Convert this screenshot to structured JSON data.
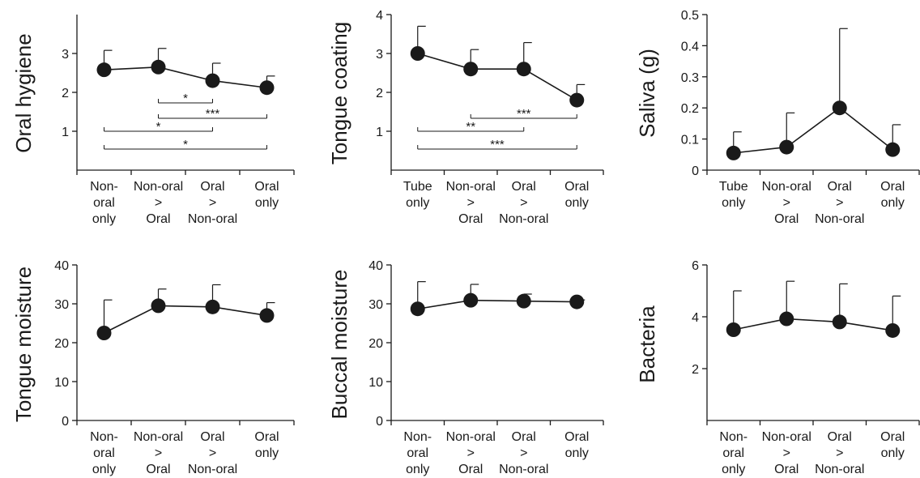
{
  "colors": {
    "ink": "#1a1a1a",
    "background": "#ffffff"
  },
  "chart_data": [
    {
      "type": "line",
      "ylabel": "Oral hygiene",
      "ylim": [
        0,
        4
      ],
      "yticks": [
        "1",
        "2",
        "3"
      ],
      "ytick_values": [
        1,
        2,
        3
      ],
      "categories": [
        [
          "Non-",
          "oral",
          "only"
        ],
        [
          "Non-oral",
          ">",
          "Oral"
        ],
        [
          "Oral",
          ">",
          "Non-oral"
        ],
        [
          "Oral",
          "only"
        ]
      ],
      "values": [
        2.58,
        2.65,
        2.3,
        2.12
      ],
      "errors": [
        0.5,
        0.48,
        0.45,
        0.3
      ],
      "significance": [
        {
          "from": 1,
          "to": 2,
          "label": "*"
        },
        {
          "from": 1,
          "to": 3,
          "label": "***"
        },
        {
          "from": 0,
          "to": 2,
          "label": "*"
        },
        {
          "from": 0,
          "to": 3,
          "label": "*"
        }
      ]
    },
    {
      "type": "line",
      "ylabel": "Tongue coating",
      "ylim": [
        0,
        4
      ],
      "yticks": [
        "1",
        "2",
        "3",
        "4"
      ],
      "ytick_values": [
        1,
        2,
        3,
        4
      ],
      "categories": [
        [
          "Tube",
          "only"
        ],
        [
          "Non-oral",
          ">",
          "Oral"
        ],
        [
          "Oral",
          ">",
          "Non-oral"
        ],
        [
          "Oral",
          "only"
        ]
      ],
      "values": [
        3.0,
        2.6,
        2.6,
        1.8
      ],
      "errors": [
        0.7,
        0.5,
        0.68,
        0.4
      ],
      "significance": [
        {
          "from": 1,
          "to": 3,
          "label": "***"
        },
        {
          "from": 0,
          "to": 2,
          "label": "**"
        },
        {
          "from": 0,
          "to": 3,
          "label": "***"
        }
      ]
    },
    {
      "type": "line",
      "ylabel": "Saliva (g)",
      "ylim": [
        0,
        0.5
      ],
      "yticks": [
        "0",
        "0.1",
        "0.2",
        "0.3",
        "0.4",
        "0.5"
      ],
      "ytick_values": [
        0,
        0.1,
        0.2,
        0.3,
        0.4,
        0.5
      ],
      "categories": [
        [
          "Tube",
          "only"
        ],
        [
          "Non-oral",
          ">",
          "Oral"
        ],
        [
          "Oral",
          ">",
          "Non-oral"
        ],
        [
          "Oral",
          "only"
        ]
      ],
      "values": [
        0.055,
        0.074,
        0.2,
        0.066
      ],
      "errors": [
        0.068,
        0.11,
        0.255,
        0.08
      ],
      "significance": []
    },
    {
      "type": "line",
      "ylabel": "Tongue moisture",
      "ylim": [
        0,
        40
      ],
      "yticks": [
        "0",
        "10",
        "20",
        "30",
        "40"
      ],
      "ytick_values": [
        0,
        10,
        20,
        30,
        40
      ],
      "categories": [
        [
          "Non-",
          "oral",
          "only"
        ],
        [
          "Non-oral",
          ">",
          "Oral"
        ],
        [
          "Oral",
          ">",
          "Non-oral"
        ],
        [
          "Oral",
          "only"
        ]
      ],
      "values": [
        22.5,
        29.5,
        29.2,
        27.0
      ],
      "errors": [
        8.5,
        4.3,
        5.7,
        3.3
      ],
      "significance": []
    },
    {
      "type": "line",
      "ylabel": "Buccal moisture",
      "ylim": [
        0,
        40
      ],
      "yticks": [
        "0",
        "10",
        "20",
        "30",
        "40"
      ],
      "ytick_values": [
        0,
        10,
        20,
        30,
        40
      ],
      "categories": [
        [
          "Non-",
          "oral",
          "only"
        ],
        [
          "Non-oral",
          ">",
          "Oral"
        ],
        [
          "Oral",
          ">",
          "Non-oral"
        ],
        [
          "Oral",
          "only"
        ]
      ],
      "values": [
        28.7,
        30.9,
        30.7,
        30.5
      ],
      "errors": [
        7.0,
        4.1,
        1.8,
        0.5
      ],
      "significance": []
    },
    {
      "type": "line",
      "ylabel": "Bacteria",
      "ylim": [
        0,
        6
      ],
      "yticks": [
        "2",
        "4",
        "6"
      ],
      "ytick_values": [
        2,
        4,
        6
      ],
      "categories": [
        [
          "Non-",
          "oral",
          "only"
        ],
        [
          "Non-oral",
          ">",
          "Oral"
        ],
        [
          "Oral",
          ">",
          "Non-oral"
        ],
        [
          "Oral",
          "only"
        ]
      ],
      "values": [
        3.5,
        3.92,
        3.8,
        3.47
      ],
      "errors": [
        1.5,
        1.45,
        1.47,
        1.33
      ],
      "significance": []
    }
  ]
}
